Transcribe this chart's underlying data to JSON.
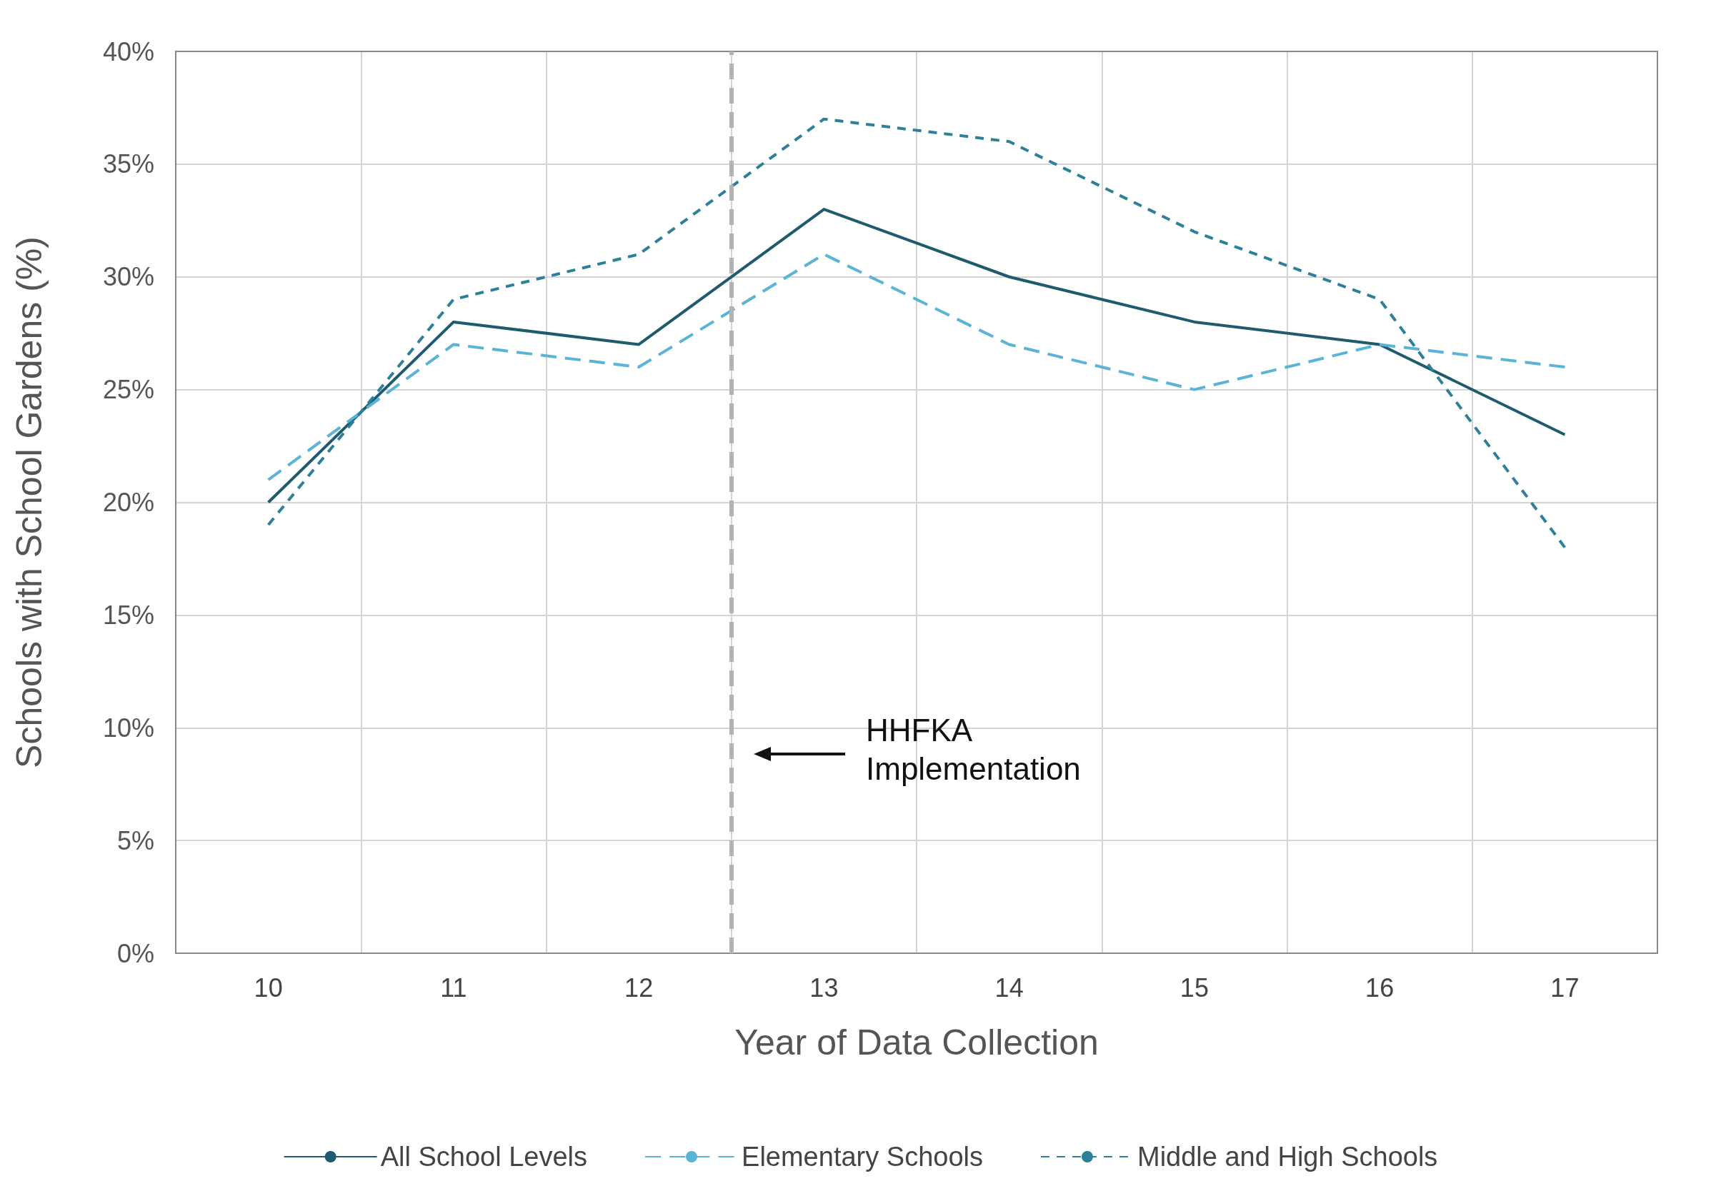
{
  "chart_data": {
    "type": "line",
    "xlabel": "Year of Data Collection",
    "ylabel": "Schools with School Gardens (%)",
    "x": [
      10,
      11,
      12,
      13,
      14,
      15,
      16,
      17
    ],
    "xlim": [
      9.5,
      17.5
    ],
    "xticks": [
      10,
      11,
      12,
      13,
      14,
      15,
      16,
      17
    ],
    "ylim": [
      0,
      40
    ],
    "yticks": [
      {
        "value": 0,
        "label": "0%"
      },
      {
        "value": 5,
        "label": "5%"
      },
      {
        "value": 10,
        "label": "10%"
      },
      {
        "value": 15,
        "label": "15%"
      },
      {
        "value": 20,
        "label": "20%"
      },
      {
        "value": 25,
        "label": "25%"
      },
      {
        "value": 30,
        "label": "30%"
      },
      {
        "value": 35,
        "label": "35%"
      },
      {
        "value": 40,
        "label": "40%"
      }
    ],
    "grid": true,
    "legend": "bottom",
    "marker": "none",
    "series": [
      {
        "name": "All School Levels",
        "color": "#1f5a6e",
        "line_style": "solid",
        "values": [
          20,
          28,
          27,
          33,
          30,
          28,
          27,
          23
        ]
      },
      {
        "name": "Elementary Schools",
        "color": "#5ab4d6",
        "line_style": "dashed",
        "values": [
          21,
          27,
          26,
          31,
          27,
          25,
          27,
          26
        ]
      },
      {
        "name": "Middle and High Schools",
        "color": "#2e7f9a",
        "line_style": "dotted",
        "values": [
          19,
          29,
          31,
          37,
          36,
          32,
          29,
          18
        ]
      }
    ],
    "ref_lines": [
      {
        "axis": "x",
        "value": 12.5,
        "color": "#b3b3b3",
        "line_style": "dashed"
      }
    ],
    "annotations": [
      "HHFKA\nImplementation"
    ]
  }
}
